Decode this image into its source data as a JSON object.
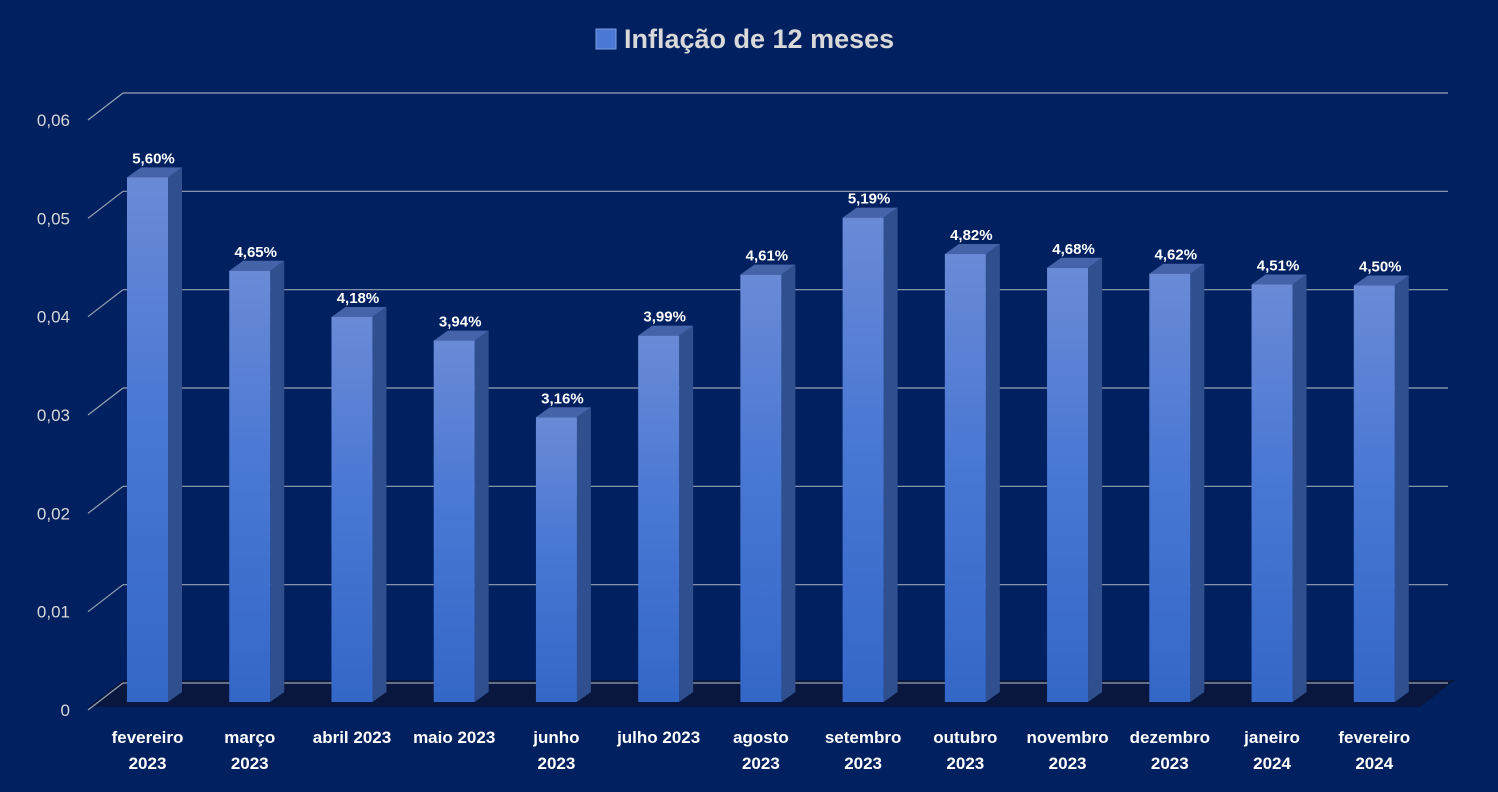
{
  "chart_data": {
    "type": "bar",
    "style": "3d-column",
    "categories": [
      [
        "fevereiro",
        "2023"
      ],
      [
        "março",
        "2023"
      ],
      [
        "abril 2023"
      ],
      [
        "maio 2023"
      ],
      [
        "junho",
        "2023"
      ],
      [
        "julho 2023"
      ],
      [
        "agosto",
        "2023"
      ],
      [
        "setembro",
        "2023"
      ],
      [
        "outubro",
        "2023"
      ],
      [
        "novembro",
        "2023"
      ],
      [
        "dezembro",
        "2023"
      ],
      [
        "janeiro",
        "2024"
      ],
      [
        "fevereiro",
        "2024"
      ]
    ],
    "series": [
      {
        "name": "Inflação de 12 meses",
        "values": [
          0.056,
          0.0465,
          0.0418,
          0.0394,
          0.0316,
          0.0399,
          0.0461,
          0.0519,
          0.0482,
          0.0468,
          0.0462,
          0.0451,
          0.045
        ],
        "data_labels": [
          "5,60%",
          "4,65%",
          "4,18%",
          "3,94%",
          "3,16%",
          "3,99%",
          "4,61%",
          "5,19%",
          "4,82%",
          "4,68%",
          "4,62%",
          "4,51%",
          "4,50%"
        ]
      }
    ],
    "ylim": [
      0,
      0.06
    ],
    "y_ticks": [
      "0",
      "0,01",
      "0,02",
      "0,03",
      "0,04",
      "0,05",
      "0,06"
    ],
    "grid": true,
    "legend_position": "top",
    "colors": {
      "background": "#002060",
      "bar_top": "#6a8ad6",
      "bar_bottom": "#3367c8",
      "bar_side": "#2f4f8e",
      "bar_cap": "#4563a8",
      "gridline": "#9aa3b5",
      "floor": "#0a1638"
    }
  }
}
